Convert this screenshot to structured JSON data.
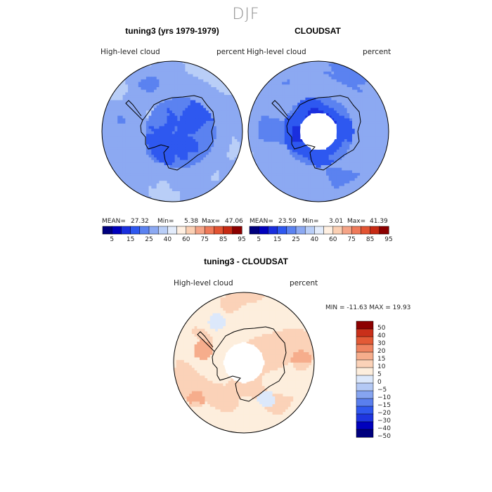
{
  "season": "DJF",
  "colors": {
    "land_outline": "#000000",
    "mean_palette": [
      "#00007e",
      "#0000bd",
      "#1a2fde",
      "#2e58f0",
      "#5b82f0",
      "#8ca9f2",
      "#b9cef7",
      "#e3ecfb",
      "#fff0e2",
      "#fbd0b4",
      "#f5a487",
      "#ef7a5a",
      "#e25332",
      "#c72a14",
      "#8c0000"
    ],
    "diff_palette": [
      "#00007e",
      "#0000bd",
      "#1e35e0",
      "#3058ee",
      "#5a7fee",
      "#86a4f0",
      "#b4c9f5",
      "#dce8fb",
      "#fdeedd",
      "#fbd2b8",
      "#f6ad8c",
      "#ef8461",
      "#e35a36",
      "#c9301a",
      "#8c0000"
    ]
  },
  "panels": {
    "model": {
      "title": "tuning3 (yrs 1979-1979)",
      "variable": "High-level cloud",
      "units": "percent",
      "stats": {
        "mean_label": "MEAN=",
        "mean": "27.32",
        "min_label": "Min=",
        "min": "5.38",
        "max_label": "Max=",
        "max": "47.06"
      }
    },
    "obs": {
      "title": "CLOUDSAT",
      "variable": "High-level cloud",
      "units": "percent",
      "stats": {
        "mean_label": "MEAN=",
        "mean": "23.59",
        "min_label": "Min=",
        "min": "3.01",
        "max_label": "Max=",
        "max": "41.39"
      }
    },
    "diff": {
      "title": "tuning3 - CLOUDSAT",
      "variable": "High-level cloud",
      "units": "percent",
      "range_text": "MIN = -11.63 MAX =  19.93"
    }
  },
  "chart_data": [
    {
      "type": "heatmap",
      "title": "tuning3 (yrs 1979-1979)",
      "variable": "High-level cloud",
      "units": "percent",
      "projection": "south polar stereographic",
      "mean": 27.32,
      "min": 5.38,
      "max": 47.06,
      "colorbar_ticks": [
        "5",
        "15",
        "25",
        "40",
        "60",
        "75",
        "85",
        "95"
      ]
    },
    {
      "type": "heatmap",
      "title": "CLOUDSAT",
      "variable": "High-level cloud",
      "units": "percent",
      "projection": "south polar stereographic",
      "mean": 23.59,
      "min": 3.01,
      "max": 41.39,
      "colorbar_ticks": [
        "5",
        "15",
        "25",
        "40",
        "60",
        "75",
        "85",
        "95"
      ]
    },
    {
      "type": "heatmap",
      "title": "tuning3 - CLOUDSAT",
      "variable": "High-level cloud",
      "units": "percent",
      "projection": "south polar stereographic",
      "min": -11.63,
      "max": 19.93,
      "colorbar_ticks": [
        "50",
        "40",
        "30",
        "20",
        "15",
        "10",
        "5",
        "0",
        "−5",
        "−10",
        "−15",
        "−20",
        "−30",
        "−40",
        "−50"
      ]
    }
  ]
}
